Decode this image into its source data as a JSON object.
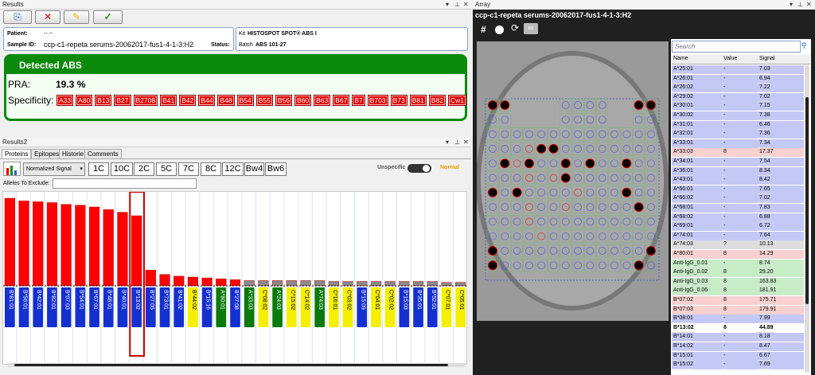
{
  "results": {
    "title": "Results",
    "patient_label": "Patient:",
    "patient_value": "-- --",
    "sample_label": "Sample ID:",
    "sample_value": "ccp-c1-repeta serums-20062017-fus1-4-1-3:H2",
    "status_label": "Status:",
    "kit_label": "Kit",
    "kit_value": "HISTOSPOT SPOT® ABS I",
    "batch_label": "Batch",
    "batch_value": "ABS 101-27",
    "detected_title": "Detected ABS",
    "pra_label": "PRA:",
    "pra_value": "19.3 %",
    "spec_label": "Specificity:",
    "specificities": [
      "A33",
      "A80",
      "B13",
      "B27",
      "B2708",
      "B41",
      "B42",
      "B44",
      "B48",
      "B54",
      "B55",
      "B56",
      "B60",
      "B63",
      "B67",
      "B7",
      "B703",
      "B73",
      "B81",
      "B82",
      "Cw1"
    ]
  },
  "results2": {
    "title": "Results2",
    "tabs": [
      "Proteins",
      "Epitopes",
      "Historie",
      "Comments"
    ],
    "signal_select": "Normalized Signal",
    "filters": [
      "1C",
      "10C",
      "2C",
      "5C",
      "7C",
      "8C",
      "12C",
      "Bw4",
      "Bw6"
    ],
    "unspecific": "Unspecific",
    "normal": "Normal",
    "alleles_label": "Alleles To Exclude:"
  },
  "chart_data": {
    "type": "bar",
    "categories": [
      "B*81:01",
      "B*56:01",
      "B*42:01",
      "B*82:01",
      "B*07:03",
      "B*54:01",
      "B*67:01",
      "B*48:01",
      "B*40:01",
      "B*13:02",
      "B*27:05",
      "B*73:01",
      "B*41:02",
      "B*44:02",
      "B*15:16",
      "A*80:01",
      "B*27:08",
      "A*33:03",
      "C*08:02",
      "A*24:03",
      "C*15:02",
      "C*14:02",
      "A*74:03",
      "C*16:01",
      "C*03:02",
      "B*15:09",
      "C*04:01",
      "C*02:02",
      "B*15:03",
      "B*35:01",
      "B*52:01",
      "C*07:01",
      "C*05:01"
    ],
    "values": [
      100,
      97,
      96,
      95,
      93,
      92,
      90,
      87,
      84,
      80,
      18,
      13,
      11,
      10,
      9,
      8,
      7,
      6,
      6,
      6,
      6,
      6,
      6,
      5,
      5,
      5,
      5,
      5,
      5,
      5,
      5,
      4,
      4
    ],
    "label_colors": [
      "blue",
      "blue",
      "blue",
      "blue",
      "blue",
      "blue",
      "blue",
      "blue",
      "blue",
      "blue",
      "blue",
      "blue",
      "blue",
      "yellow",
      "blue",
      "green",
      "blue",
      "green",
      "yellow",
      "green",
      "yellow",
      "yellow",
      "green",
      "yellow",
      "yellow",
      "blue",
      "yellow",
      "yellow",
      "blue",
      "blue",
      "blue",
      "yellow",
      "yellow"
    ]
  },
  "array": {
    "title": "Array",
    "image_title": "ccp-c1-repeta serums-20062017-fus1-4-1-3:H2",
    "hash": "#"
  },
  "table": {
    "search_placeholder": "Search",
    "headers": [
      "Name",
      "Value",
      "Signal"
    ],
    "rows": [
      [
        "A*25:01",
        "-",
        "7.03",
        "blue"
      ],
      [
        "A*26:01",
        "-",
        "6.94",
        "blue"
      ],
      [
        "A*26:02",
        "-",
        "7.22",
        "blue"
      ],
      [
        "A*29:02",
        "-",
        "7.02",
        "blue"
      ],
      [
        "A*30:01",
        "-",
        "7.15",
        "blue"
      ],
      [
        "A*30:02",
        "-",
        "7.38",
        "blue"
      ],
      [
        "A*31:01",
        "-",
        "6.46",
        "blue"
      ],
      [
        "A*32:01",
        "-",
        "7.36",
        "blue"
      ],
      [
        "A*33:01",
        "-",
        "7.34",
        "blue"
      ],
      [
        "A*33:03",
        "8",
        "17.37",
        "red"
      ],
      [
        "A*34:01",
        "-",
        "7.54",
        "blue"
      ],
      [
        "A*36:01",
        "-",
        "8.34",
        "blue"
      ],
      [
        "A*43:01",
        "-",
        "8.42",
        "blue"
      ],
      [
        "A*66:01",
        "-",
        "7.65",
        "blue"
      ],
      [
        "A*66:02",
        "-",
        "7.02",
        "blue"
      ],
      [
        "A*68:01",
        "-",
        "7.83",
        "blue"
      ],
      [
        "A*68:02",
        "-",
        "6.88",
        "blue"
      ],
      [
        "A*69:01",
        "-",
        "6.72",
        "blue"
      ],
      [
        "A*74:01",
        "-",
        "7.64",
        "blue"
      ],
      [
        "A*74:03",
        "?",
        "10.13",
        "gray"
      ],
      [
        "A*80:01",
        "8",
        "14.29",
        "red"
      ],
      [
        "Anti-IgG_0.01",
        "-",
        "8.74",
        "green"
      ],
      [
        "Anti-IgG_0.02",
        "8",
        "29.20",
        "green"
      ],
      [
        "Anti-IgG_0.03",
        "8",
        "163.83",
        "green"
      ],
      [
        "Anti-IgG_0.06",
        "8",
        "181.91",
        "green"
      ],
      [
        "B*07:02",
        "8",
        "175.71",
        "red"
      ],
      [
        "B*07:03",
        "8",
        "179.91",
        "red"
      ],
      [
        "B*08:01",
        "-",
        "7.99",
        "blue"
      ],
      [
        "B*13:02",
        "8",
        "44.89",
        "bold"
      ],
      [
        "B*14:01",
        "-",
        "8.18",
        "blue"
      ],
      [
        "B*14:02",
        "-",
        "8.47",
        "blue"
      ],
      [
        "B*15:01",
        "-",
        "6.67",
        "blue"
      ],
      [
        "B*15:02",
        "-",
        "7.69",
        "blue"
      ]
    ]
  }
}
